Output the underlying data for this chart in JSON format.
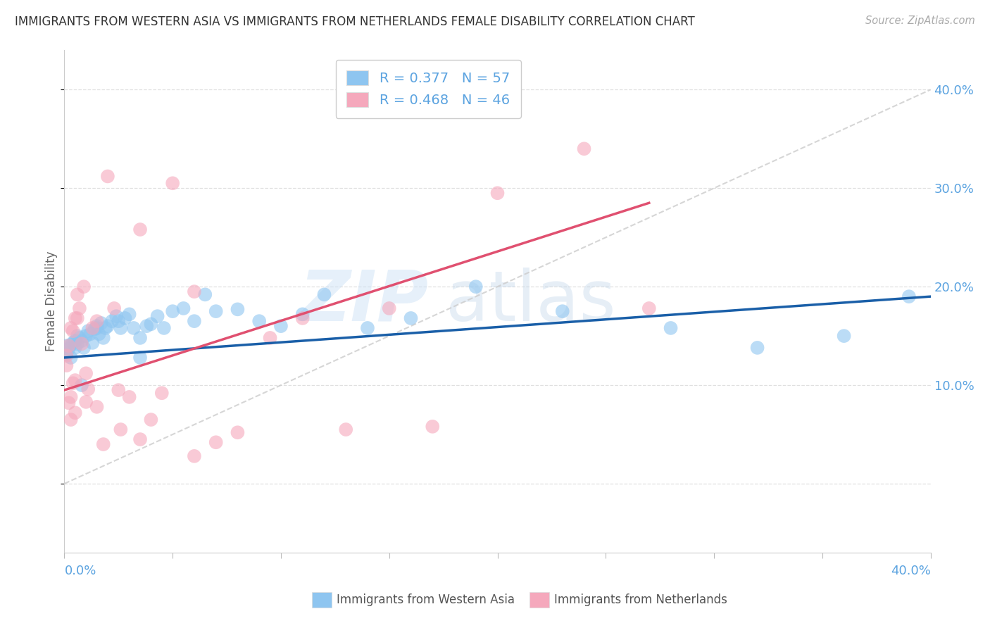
{
  "title": "IMMIGRANTS FROM WESTERN ASIA VS IMMIGRANTS FROM NETHERLANDS FEMALE DISABILITY CORRELATION CHART",
  "source": "Source: ZipAtlas.com",
  "ylabel": "Female Disability",
  "color_blue": "#8ec5f0",
  "color_pink": "#f5a8bc",
  "color_blue_line": "#1a5fa8",
  "color_pink_line": "#e05070",
  "color_dashed": "#cccccc",
  "color_axis_labels": "#5ba3e0",
  "watermark_zip": "ZIP",
  "watermark_atlas": "atlas",
  "legend_r1": "R = 0.377",
  "legend_n1": "N = 57",
  "legend_r2": "R = 0.468",
  "legend_n2": "N = 46",
  "xmin": 0.0,
  "xmax": 0.4,
  "ymin": -0.07,
  "ymax": 0.44,
  "ytick_vals": [
    0.0,
    0.1,
    0.2,
    0.3,
    0.4
  ],
  "ytick_labels": [
    "",
    "10.0%",
    "20.0%",
    "30.0%",
    "40.0%"
  ],
  "blue_line_x0": 0.0,
  "blue_line_y0": 0.128,
  "blue_line_x1": 0.4,
  "blue_line_y1": 0.19,
  "pink_line_x0": 0.0,
  "pink_line_y0": 0.095,
  "pink_line_x1": 0.27,
  "pink_line_y1": 0.285,
  "scatter_blue_x": [
    0.001,
    0.001,
    0.002,
    0.003,
    0.003,
    0.004,
    0.005,
    0.005,
    0.006,
    0.006,
    0.007,
    0.008,
    0.009,
    0.01,
    0.011,
    0.012,
    0.013,
    0.014,
    0.015,
    0.016,
    0.017,
    0.018,
    0.019,
    0.02,
    0.022,
    0.024,
    0.026,
    0.028,
    0.03,
    0.032,
    0.035,
    0.038,
    0.04,
    0.043,
    0.046,
    0.05,
    0.055,
    0.06,
    0.065,
    0.07,
    0.08,
    0.09,
    0.1,
    0.11,
    0.12,
    0.14,
    0.16,
    0.19,
    0.23,
    0.28,
    0.32,
    0.36,
    0.39,
    0.008,
    0.015,
    0.025,
    0.035
  ],
  "scatter_blue_y": [
    0.14,
    0.132,
    0.137,
    0.141,
    0.128,
    0.143,
    0.145,
    0.138,
    0.142,
    0.15,
    0.148,
    0.145,
    0.138,
    0.15,
    0.155,
    0.152,
    0.143,
    0.157,
    0.16,
    0.152,
    0.163,
    0.148,
    0.158,
    0.16,
    0.165,
    0.17,
    0.158,
    0.168,
    0.172,
    0.158,
    0.148,
    0.16,
    0.162,
    0.17,
    0.158,
    0.175,
    0.178,
    0.165,
    0.192,
    0.175,
    0.177,
    0.165,
    0.16,
    0.172,
    0.192,
    0.158,
    0.168,
    0.2,
    0.175,
    0.158,
    0.138,
    0.15,
    0.19,
    0.1,
    0.158,
    0.165,
    0.128
  ],
  "scatter_pink_x": [
    0.001,
    0.001,
    0.002,
    0.002,
    0.003,
    0.003,
    0.003,
    0.004,
    0.004,
    0.005,
    0.005,
    0.006,
    0.006,
    0.007,
    0.008,
    0.009,
    0.01,
    0.011,
    0.013,
    0.015,
    0.018,
    0.02,
    0.023,
    0.026,
    0.03,
    0.035,
    0.04,
    0.045,
    0.05,
    0.06,
    0.07,
    0.08,
    0.095,
    0.11,
    0.13,
    0.15,
    0.17,
    0.2,
    0.24,
    0.27,
    0.005,
    0.01,
    0.015,
    0.025,
    0.035,
    0.06
  ],
  "scatter_pink_y": [
    0.13,
    0.12,
    0.14,
    0.082,
    0.088,
    0.065,
    0.158,
    0.102,
    0.155,
    0.105,
    0.168,
    0.168,
    0.192,
    0.178,
    0.142,
    0.2,
    0.083,
    0.096,
    0.158,
    0.165,
    0.04,
    0.312,
    0.178,
    0.055,
    0.088,
    0.258,
    0.065,
    0.092,
    0.305,
    0.195,
    0.042,
    0.052,
    0.148,
    0.168,
    0.055,
    0.178,
    0.058,
    0.295,
    0.34,
    0.178,
    0.072,
    0.112,
    0.078,
    0.095,
    0.045,
    0.028
  ]
}
